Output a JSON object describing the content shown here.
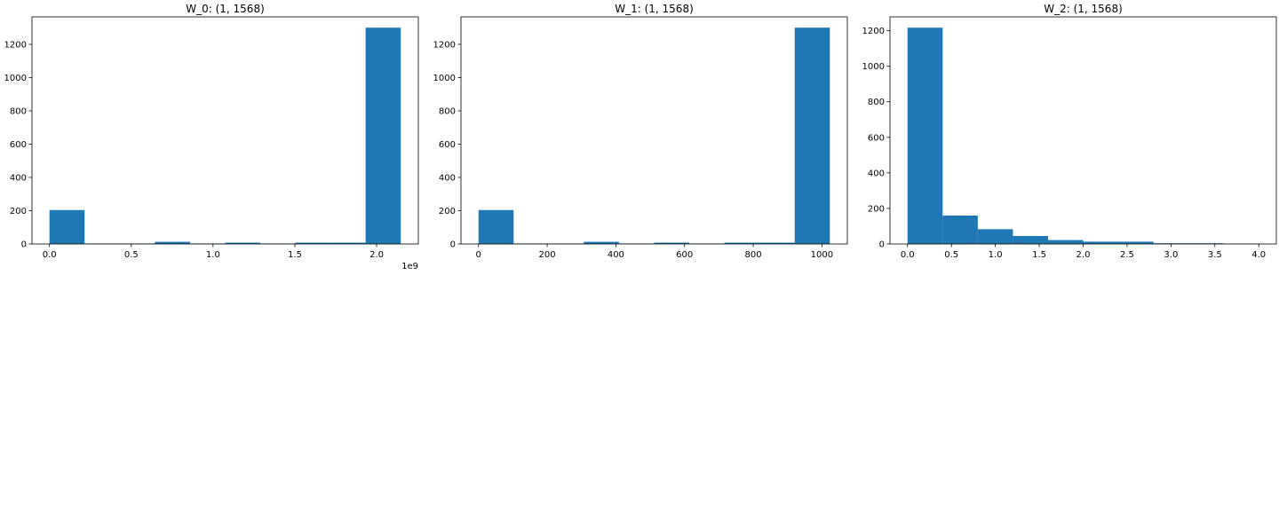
{
  "chart_data": [
    {
      "type": "bar",
      "title": "W_0: (1, 1568)",
      "xlabel": "",
      "ylabel": "",
      "offset_text": "1e9",
      "xlim": [
        -0.107,
        2.255
      ],
      "ylim": [
        0,
        1365
      ],
      "xticks": [
        {
          "v": 0.0,
          "label": "0.0"
        },
        {
          "v": 0.5,
          "label": "0.5"
        },
        {
          "v": 1.0,
          "label": "1.0"
        },
        {
          "v": 1.5,
          "label": "1.5"
        },
        {
          "v": 2.0,
          "label": "2.0"
        }
      ],
      "yticks": [
        {
          "v": 0,
          "label": "0"
        },
        {
          "v": 200,
          "label": "200"
        },
        {
          "v": 400,
          "label": "400"
        },
        {
          "v": 600,
          "label": "600"
        },
        {
          "v": 800,
          "label": "800"
        },
        {
          "v": 1000,
          "label": "1000"
        },
        {
          "v": 1200,
          "label": "1200"
        }
      ],
      "bin_edges": [
        0.0,
        0.2147,
        0.4295,
        0.6442,
        0.859,
        1.0737,
        1.2885,
        1.5032,
        1.718,
        1.9327,
        2.1475
      ],
      "counts": [
        204,
        3,
        3,
        13,
        3,
        8,
        3,
        8,
        8,
        1300
      ]
    },
    {
      "type": "bar",
      "title": "W_1: (1, 1568)",
      "xlabel": "",
      "ylabel": "",
      "xlim": [
        -51,
        1074
      ],
      "ylim": [
        0,
        1365
      ],
      "xticks": [
        {
          "v": 0,
          "label": "0"
        },
        {
          "v": 200,
          "label": "200"
        },
        {
          "v": 400,
          "label": "400"
        },
        {
          "v": 600,
          "label": "600"
        },
        {
          "v": 800,
          "label": "800"
        },
        {
          "v": 1000,
          "label": "1000"
        }
      ],
      "yticks": [
        {
          "v": 0,
          "label": "0"
        },
        {
          "v": 200,
          "label": "200"
        },
        {
          "v": 400,
          "label": "400"
        },
        {
          "v": 600,
          "label": "600"
        },
        {
          "v": 800,
          "label": "800"
        },
        {
          "v": 1000,
          "label": "1000"
        },
        {
          "v": 1200,
          "label": "1200"
        }
      ],
      "bin_edges": [
        0,
        102.3,
        204.6,
        306.9,
        409.2,
        511.5,
        613.8,
        716.1,
        818.4,
        920.7,
        1023
      ],
      "counts": [
        204,
        3,
        3,
        13,
        3,
        8,
        3,
        8,
        8,
        1300
      ]
    },
    {
      "type": "bar",
      "title": "W_2: (1, 1568)",
      "xlabel": "",
      "ylabel": "",
      "xlim": [
        -0.2,
        4.2
      ],
      "ylim": [
        0,
        1278
      ],
      "xticks": [
        {
          "v": 0.0,
          "label": "0.0"
        },
        {
          "v": 0.5,
          "label": "0.5"
        },
        {
          "v": 1.0,
          "label": "1.0"
        },
        {
          "v": 1.5,
          "label": "1.5"
        },
        {
          "v": 2.0,
          "label": "2.0"
        },
        {
          "v": 2.5,
          "label": "2.5"
        },
        {
          "v": 3.0,
          "label": "3.0"
        },
        {
          "v": 3.5,
          "label": "3.5"
        },
        {
          "v": 4.0,
          "label": "4.0"
        }
      ],
      "yticks": [
        {
          "v": 0,
          "label": "0"
        },
        {
          "v": 200,
          "label": "200"
        },
        {
          "v": 400,
          "label": "400"
        },
        {
          "v": 600,
          "label": "600"
        },
        {
          "v": 800,
          "label": "800"
        },
        {
          "v": 1000,
          "label": "1000"
        },
        {
          "v": 1200,
          "label": "1200"
        }
      ],
      "bin_edges": [
        0.0,
        0.4,
        0.8,
        1.2,
        1.6,
        2.0,
        2.4,
        2.8,
        3.2,
        3.6,
        4.0
      ],
      "counts": [
        1217,
        160,
        83,
        45,
        22,
        13,
        13,
        4,
        4,
        2
      ]
    }
  ],
  "colors": {
    "bar": "#1f77b4",
    "axis": "#000000"
  }
}
